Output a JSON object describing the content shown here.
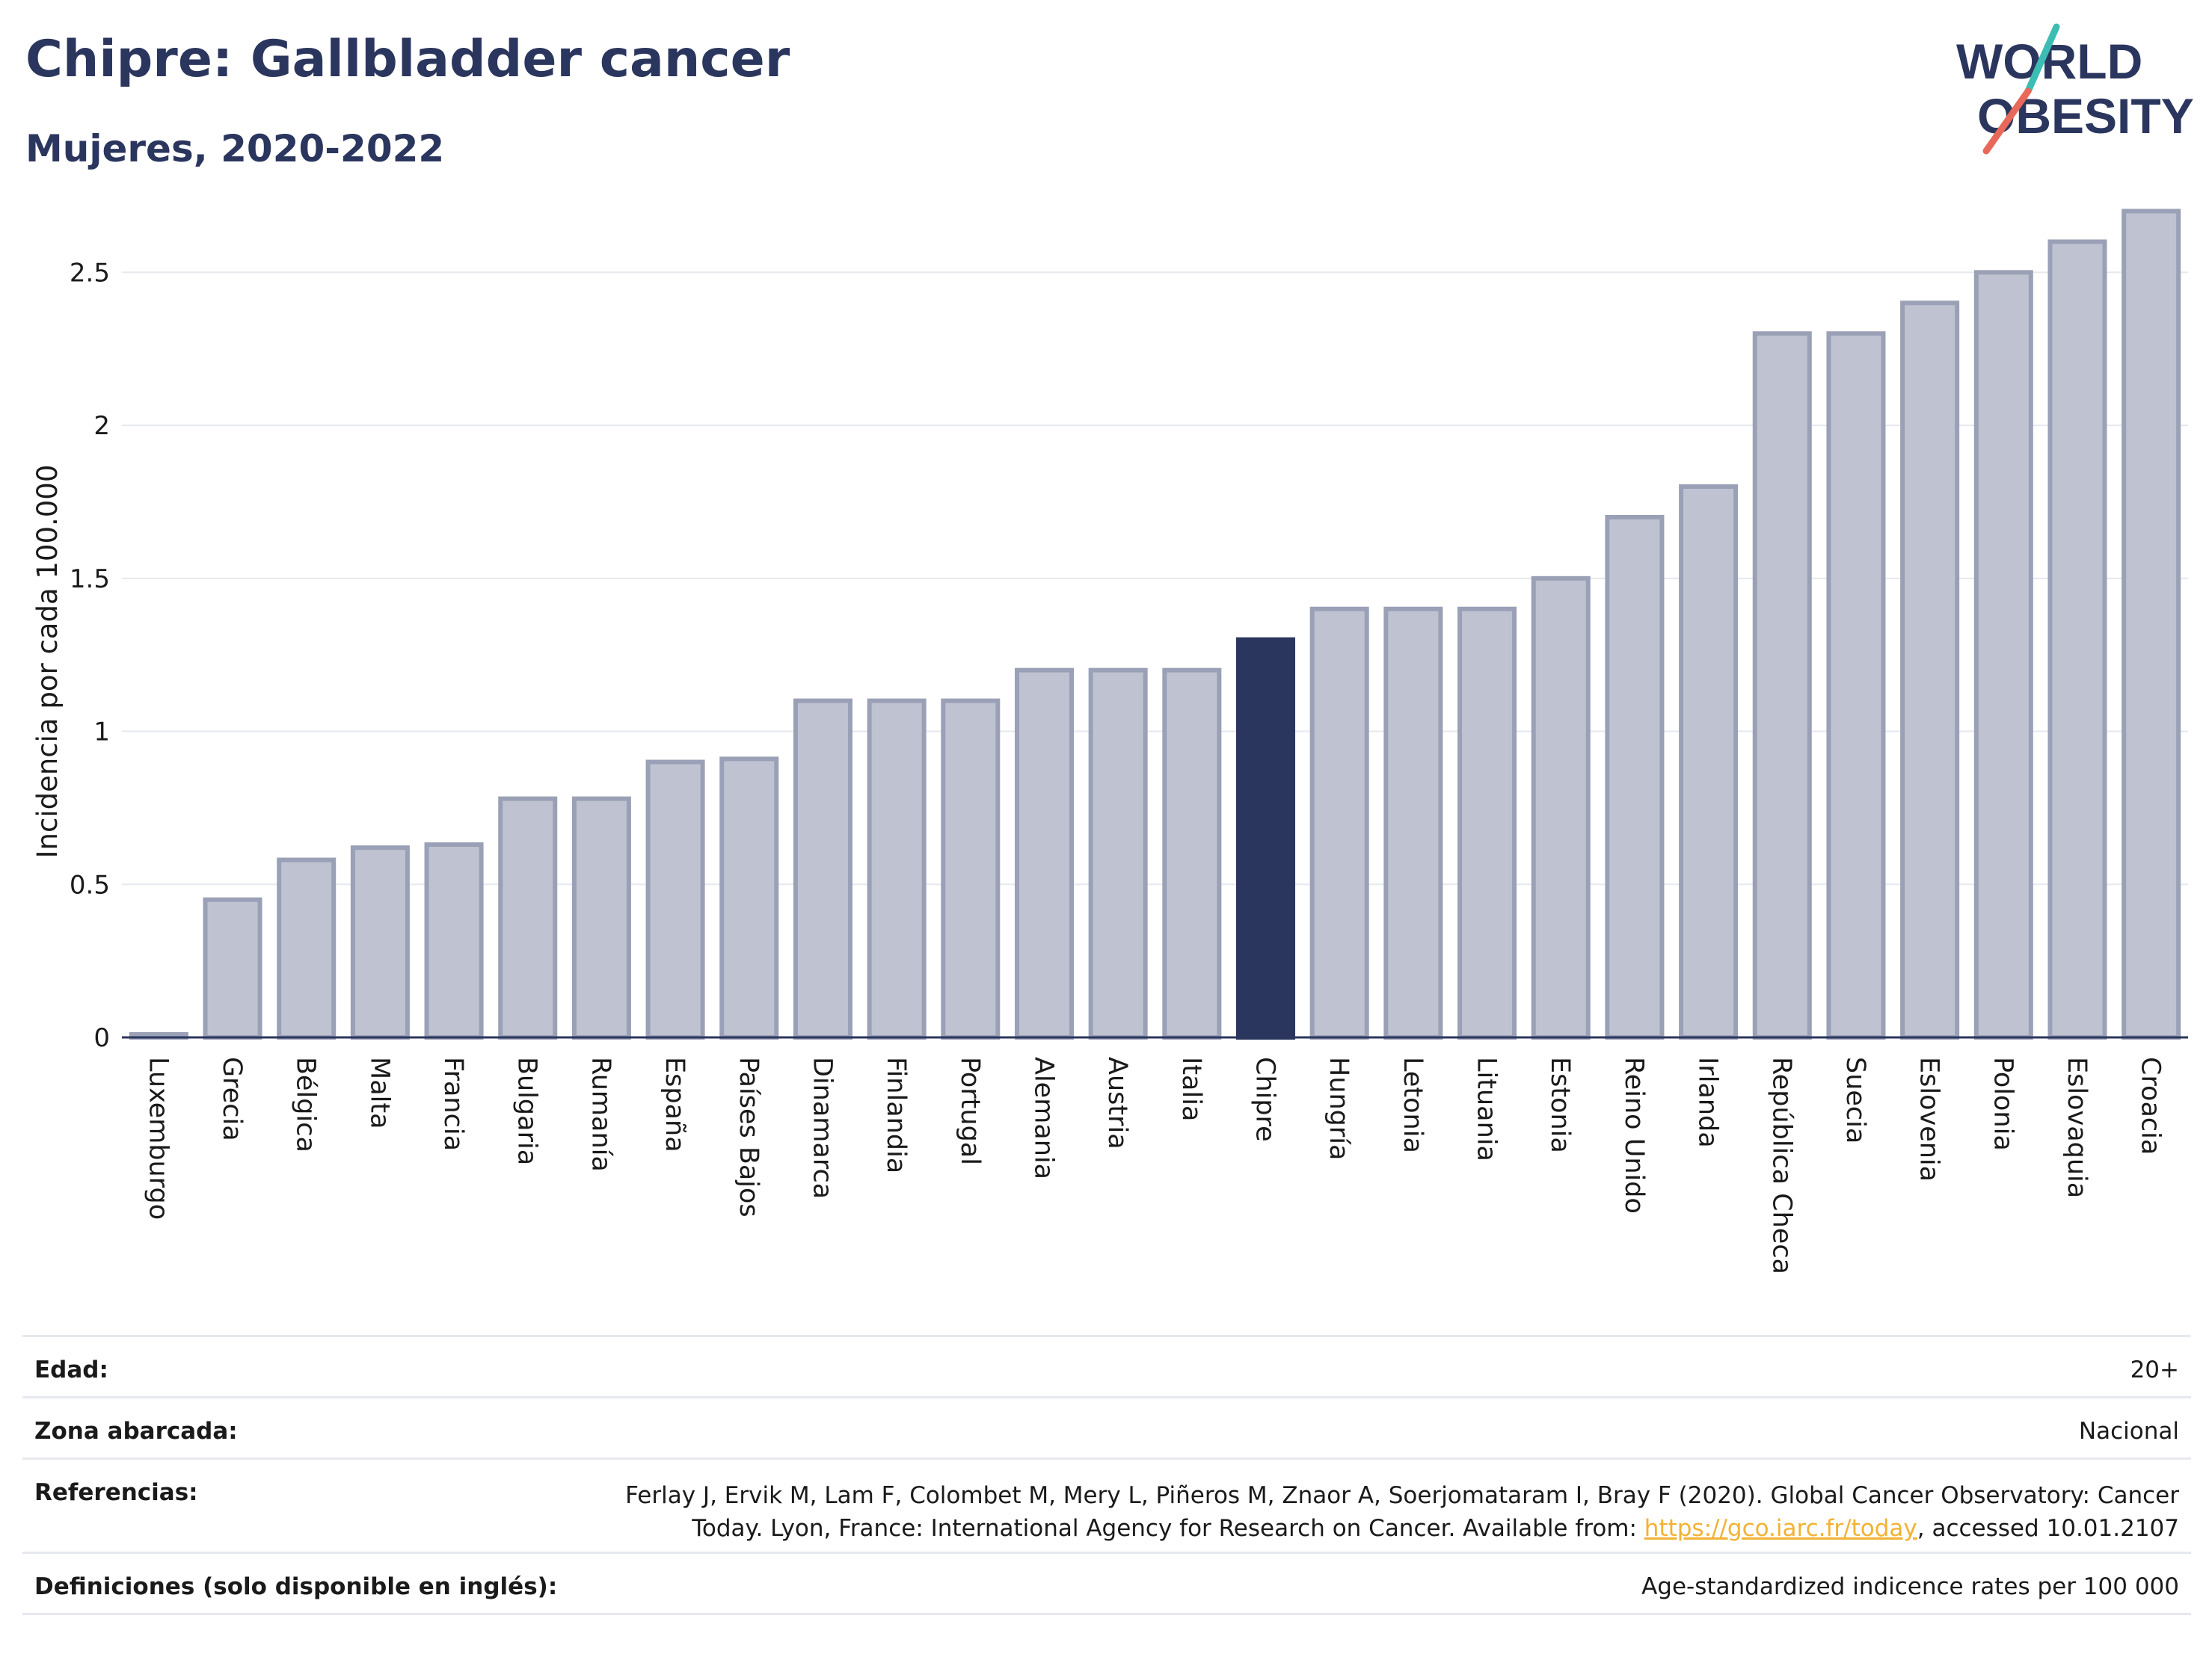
{
  "header": {
    "title": "Chipre: Gallbladder cancer",
    "subtitle": "Mujeres, 2020-2022"
  },
  "logo": {
    "line1": "WORLD",
    "line2": "OBESITY"
  },
  "colors": {
    "brand": "#2b365e",
    "bar": "#bfc3d1",
    "bar_stroke": "#9aa0b6",
    "highlight": "#2b365e",
    "grid": "#e6e8ef",
    "logo_teal": "#3cbdb3",
    "logo_coral": "#e8685a",
    "link": "#f2b233"
  },
  "chart_data": {
    "type": "bar",
    "ylabel": "Incidencia por cada 100.000",
    "xlabel": "",
    "ylim": [
      0,
      2.75
    ],
    "yticks": [
      0,
      0.5,
      1,
      1.5,
      2,
      2.5
    ],
    "ytick_labels": [
      "0",
      "0.5",
      "1",
      "1.5",
      "2",
      "2.5"
    ],
    "grid": true,
    "highlight": "Chipre",
    "categories": [
      "Luxemburgo",
      "Grecia",
      "Bélgica",
      "Malta",
      "Francia",
      "Bulgaria",
      "Rumanía",
      "España",
      "Países Bajos",
      "Dinamarca",
      "Finlandia",
      "Portugal",
      "Alemania",
      "Austria",
      "Italia",
      "Chipre",
      "Hungría",
      "Letonia",
      "Lituania",
      "Estonia",
      "Reino Unido",
      "Irlanda",
      "República Checa",
      "Suecia",
      "Eslovenia",
      "Polonia",
      "Eslovaquia",
      "Croacia"
    ],
    "values": [
      0.01,
      0.45,
      0.58,
      0.62,
      0.63,
      0.78,
      0.78,
      0.9,
      0.91,
      1.1,
      1.1,
      1.1,
      1.2,
      1.2,
      1.2,
      1.3,
      1.4,
      1.4,
      1.4,
      1.5,
      1.7,
      1.8,
      2.3,
      2.3,
      2.4,
      2.5,
      2.6,
      2.7
    ]
  },
  "meta": {
    "edad_label": "Edad:",
    "edad_value": "20+",
    "zona_label": "Zona abarcada:",
    "zona_value": "Nacional",
    "ref_label": "Referencias:",
    "ref_line1": "Ferlay J, Ervik M, Lam F, Colombet M, Mery L, Piñeros M, Znaor A, Soerjomataram I, Bray F (2020). Global Cancer Observatory: Cancer",
    "ref_line2_pre": "Today. Lyon, France: International Agency for Research on Cancer. Available from: ",
    "ref_link": "https://gco.iarc.fr/today",
    "ref_line2_post": ", accessed 10.01.2107",
    "def_label": "Definiciones (solo disponible en inglés):",
    "def_value": "Age-standardized indicence rates per 100 000"
  }
}
